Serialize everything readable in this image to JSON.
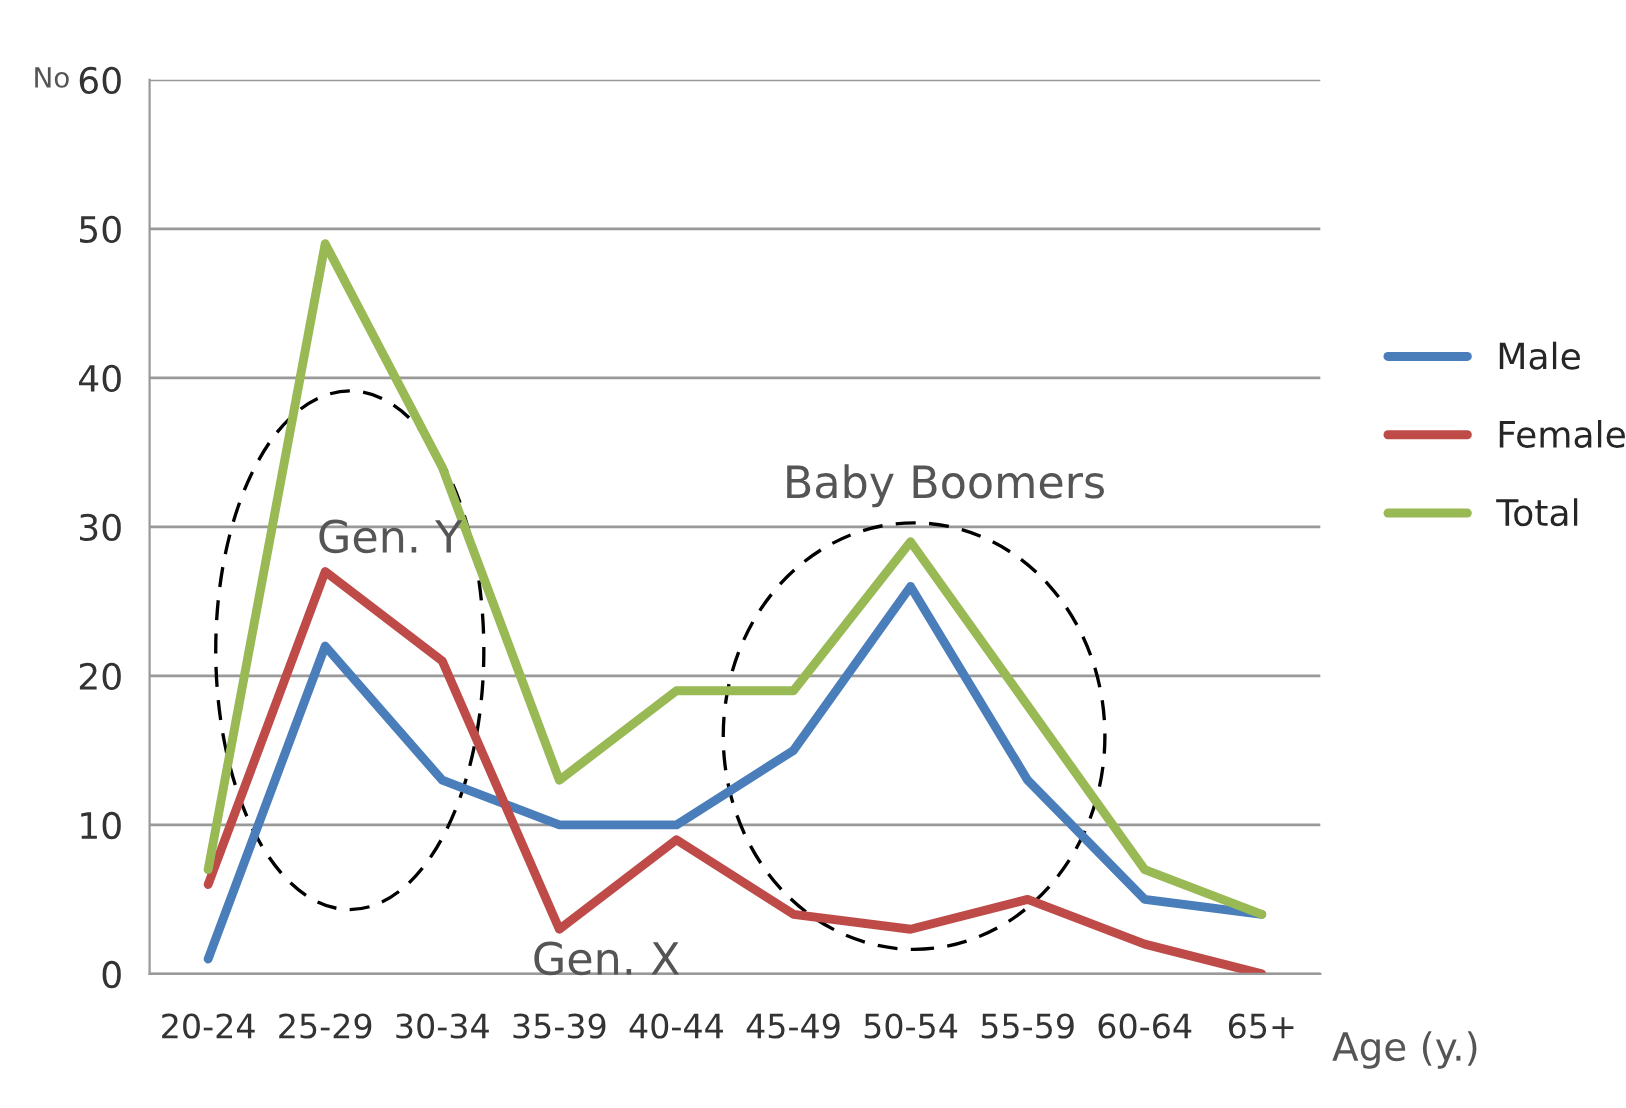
{
  "chart_data": {
    "type": "line",
    "ylabel": "No",
    "xlabel": "Age (y.)",
    "categories": [
      "20-24",
      "25-29",
      "30-34",
      "35-39",
      "40-44",
      "45-49",
      "50-54",
      "55-59",
      "60-64",
      "65+"
    ],
    "series": [
      {
        "name": "Male",
        "color": "#4a7ebb",
        "values": [
          1,
          22,
          13,
          10,
          10,
          15,
          26,
          13,
          5,
          4
        ]
      },
      {
        "name": "Female",
        "color": "#be4b48",
        "values": [
          6,
          27,
          21,
          3,
          9,
          4,
          3,
          5,
          2,
          0
        ]
      },
      {
        "name": "Total",
        "color": "#98b954",
        "values": [
          7,
          49,
          34,
          13,
          19,
          19,
          29,
          18,
          7,
          4
        ]
      }
    ],
    "ylim": [
      0,
      60
    ],
    "yticks": [
      0,
      10,
      20,
      30,
      40,
      50,
      60
    ],
    "grid": "y",
    "legend": "right",
    "marker": "none",
    "line_style": "solid",
    "annotations": [
      "Gen. Y",
      "Baby Boomers",
      "Gen. X"
    ]
  }
}
